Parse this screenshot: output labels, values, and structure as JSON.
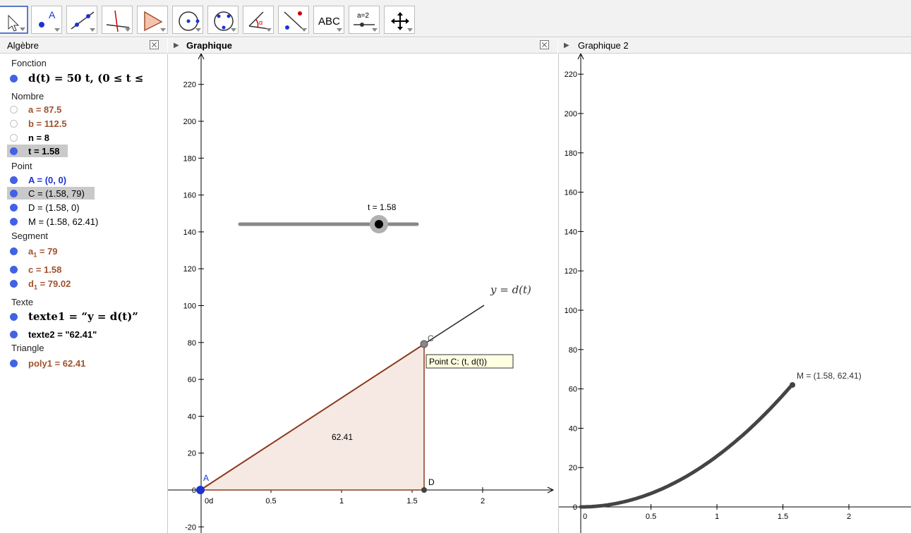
{
  "toolbar": {
    "tools": [
      {
        "id": "move",
        "text": ""
      },
      {
        "id": "point",
        "text": "A"
      },
      {
        "id": "line",
        "text": ""
      },
      {
        "id": "perpendicular",
        "text": ""
      },
      {
        "id": "polygon",
        "text": ""
      },
      {
        "id": "circle",
        "text": ""
      },
      {
        "id": "conic",
        "text": ""
      },
      {
        "id": "angle",
        "text": "α"
      },
      {
        "id": "reflect",
        "text": ""
      },
      {
        "id": "text",
        "text": "ABC"
      },
      {
        "id": "slider",
        "text": "a=2"
      },
      {
        "id": "move-view",
        "text": ""
      }
    ]
  },
  "algebra": {
    "title": "Algèbre",
    "categories": {
      "function": "Fonction",
      "number": "Nombre",
      "point": "Point",
      "segment": "Segment",
      "text": "Texte",
      "triangle": "Triangle"
    },
    "function": {
      "d": "d(t) = 50 t,    (0 ≤ t ≤"
    },
    "numbers": {
      "a": "a = 87.5",
      "b": "b = 112.5",
      "n": "n = 8",
      "t": "t = 1.58"
    },
    "points": {
      "A": "A = (0, 0)",
      "C": "C = (1.58, 79)",
      "D": "D = (1.58, 0)",
      "M": "M = (1.58, 62.41)"
    },
    "segments": {
      "a1_base": "a",
      "a1_sub": "1",
      "a1_val": " = 79",
      "c": "c = 1.58",
      "d1_base": "d",
      "d1_sub": "1",
      "d1_val": " = 79.02"
    },
    "texts": {
      "texte1": "texte1 = “y = d(t)”",
      "texte2": "texte2 = \"62.41\""
    },
    "triangles": {
      "poly1": "poly1 = 62.41"
    }
  },
  "graph1": {
    "title": "Graphique",
    "y_ticks": [
      "220",
      "200",
      "180",
      "160",
      "140",
      "120",
      "100",
      "80",
      "60",
      "40",
      "20",
      "0",
      "-20"
    ],
    "x_ticks": [
      "0d",
      "0.5",
      "1",
      "1.5",
      "2"
    ],
    "slider_label": "t = 1.58",
    "slider_value": 1.58,
    "line_label": "y = d(t)",
    "label_A": "A",
    "label_C": "C",
    "label_D": "D",
    "tooltip": "Point C: (t, d(t))",
    "area_label": "62.41",
    "colors": {
      "triangle_fill": "#f6e9e3",
      "triangle_edge": "#8b3a1f",
      "point_A": "#1a33d3",
      "slider": "#888888"
    }
  },
  "graph2": {
    "title": "Graphique 2",
    "y_ticks": [
      "220",
      "200",
      "180",
      "160",
      "140",
      "120",
      "100",
      "80",
      "60",
      "40",
      "20",
      "0"
    ],
    "x_ticks": [
      "0",
      "0.5",
      "1",
      "1.5",
      "2"
    ],
    "point_label": "M = (1.58, 62.41)",
    "curve_color": "#444444"
  }
}
